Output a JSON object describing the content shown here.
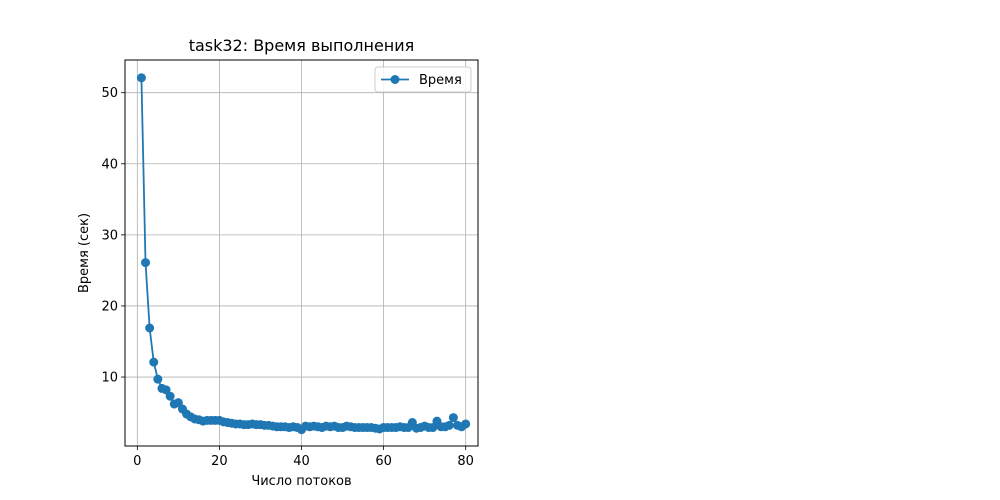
{
  "chart_data": {
    "type": "line",
    "title": "task32: Время выполнения",
    "xlabel": "Число потоков",
    "ylabel": "Время (сек)",
    "xlim": [
      -3,
      83
    ],
    "ylim": [
      0.3,
      54.6
    ],
    "xticks": [
      0,
      20,
      40,
      60,
      80
    ],
    "yticks": [
      10,
      20,
      30,
      40,
      50
    ],
    "grid": true,
    "legend_position": "top-right",
    "color": "#1f77b4",
    "series": [
      {
        "name": "Время",
        "x": [
          1,
          2,
          3,
          4,
          5,
          6,
          7,
          8,
          9,
          10,
          11,
          12,
          13,
          14,
          15,
          16,
          17,
          18,
          19,
          20,
          21,
          22,
          23,
          24,
          25,
          26,
          27,
          28,
          29,
          30,
          31,
          32,
          33,
          34,
          35,
          36,
          37,
          38,
          39,
          40,
          41,
          42,
          43,
          44,
          45,
          46,
          47,
          48,
          49,
          50,
          51,
          52,
          53,
          54,
          55,
          56,
          57,
          58,
          59,
          60,
          61,
          62,
          63,
          64,
          65,
          66,
          67,
          68,
          69,
          70,
          71,
          72,
          73,
          74,
          75,
          76,
          77,
          78,
          79,
          80
        ],
        "y": [
          52.1,
          26.1,
          16.9,
          12.1,
          9.7,
          8.4,
          8.2,
          7.3,
          6.2,
          6.4,
          5.5,
          4.8,
          4.4,
          4.1,
          4.0,
          3.8,
          3.9,
          3.9,
          3.9,
          3.9,
          3.7,
          3.6,
          3.5,
          3.4,
          3.4,
          3.3,
          3.3,
          3.4,
          3.3,
          3.3,
          3.2,
          3.2,
          3.1,
          3.0,
          3.0,
          3.0,
          2.9,
          3.0,
          2.9,
          2.6,
          3.1,
          3.0,
          3.1,
          3.0,
          2.9,
          3.1,
          3.0,
          3.1,
          2.9,
          2.9,
          3.1,
          3.0,
          2.9,
          2.9,
          2.9,
          2.9,
          2.9,
          2.8,
          2.7,
          2.9,
          2.9,
          2.9,
          2.9,
          3.0,
          2.9,
          2.9,
          3.6,
          2.8,
          2.9,
          3.1,
          2.9,
          2.9,
          3.8,
          3.0,
          3.0,
          3.2,
          4.3,
          3.2,
          3.0,
          3.4
        ]
      }
    ]
  }
}
